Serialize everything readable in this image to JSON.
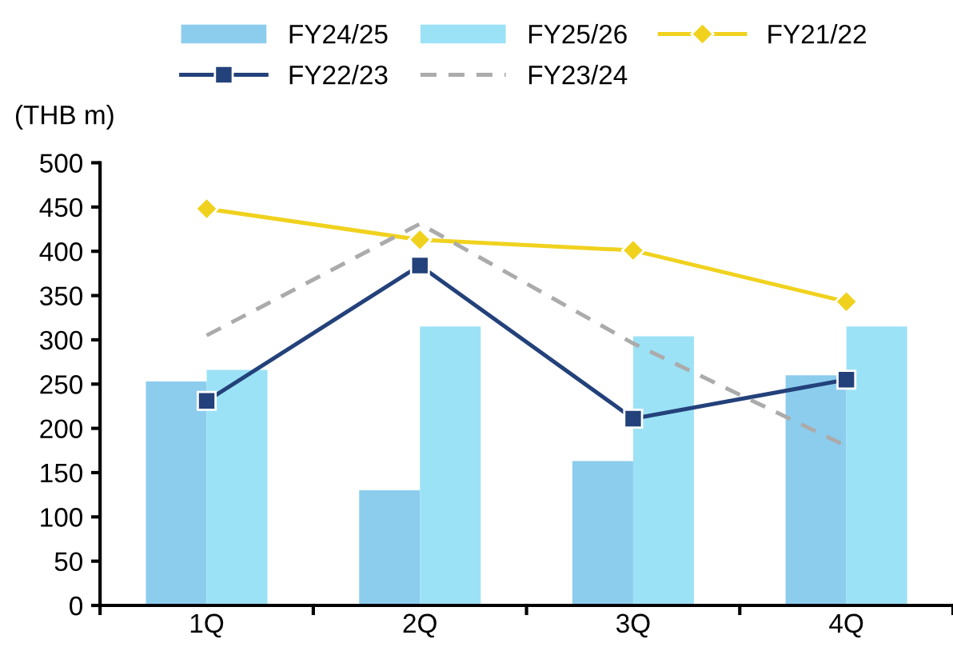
{
  "chart_data": {
    "type": "bar",
    "ylabel": "(THB m)",
    "categories": [
      "1Q",
      "2Q",
      "3Q",
      "4Q"
    ],
    "series": [
      {
        "name": "FY24/25",
        "color": "#8ccdee",
        "values": [
          253,
          130,
          163,
          260
        ]
      },
      {
        "name": "FY25/26",
        "color": "#9ce2f6",
        "values": [
          266,
          315,
          304,
          315
        ]
      },
      {
        "name": "FY21/22",
        "type": "line",
        "color": "#f0d21e",
        "marker": "diamond",
        "line_style": "solid",
        "values": [
          448,
          413,
          401,
          343
        ]
      },
      {
        "name": "FY22/23",
        "type": "line",
        "color": "#23417a",
        "marker": "square",
        "line_style": "solid",
        "values": [
          231,
          384,
          211,
          255
        ]
      },
      {
        "name": "FY23/24",
        "type": "line",
        "color": "#ababab",
        "marker": "none",
        "line_style": "dashed",
        "values": [
          305,
          431,
          296,
          180
        ]
      }
    ],
    "ylim": [
      0,
      500
    ],
    "yticks": [
      0,
      50,
      100,
      150,
      200,
      250,
      300,
      350,
      400,
      450,
      500
    ],
    "grid": false,
    "legend": "top"
  }
}
